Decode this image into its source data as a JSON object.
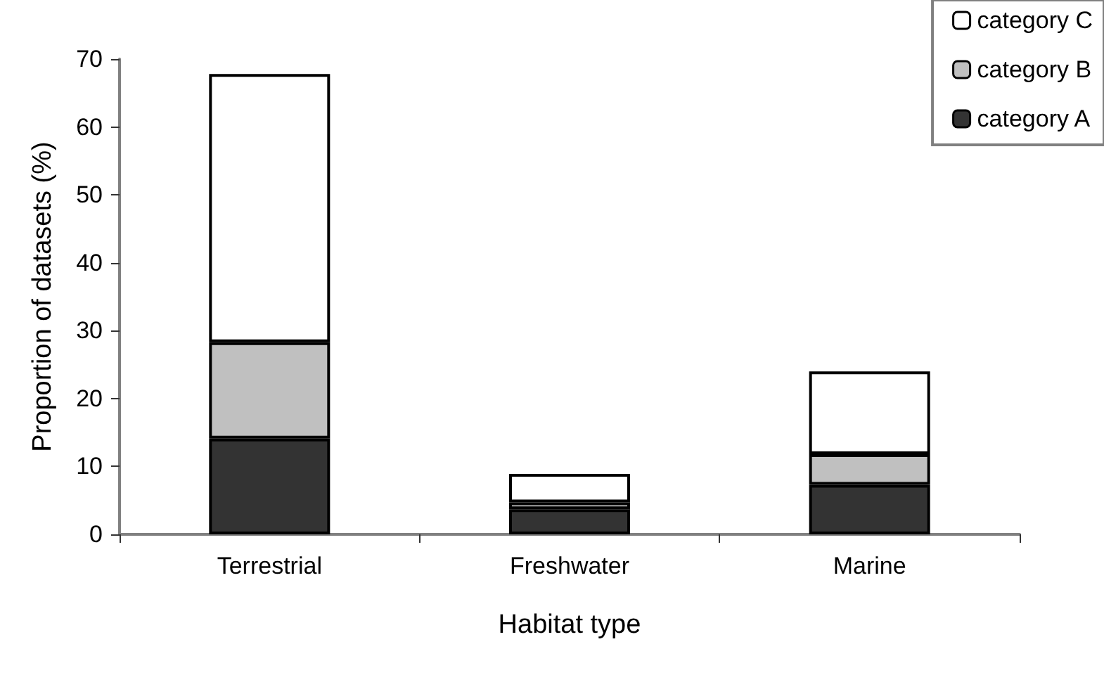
{
  "chart_data": {
    "type": "bar",
    "stacked": true,
    "xlabel": "Habitat type",
    "ylabel": "Proportion of datasets (%)",
    "categories": [
      "Terrestrial",
      "Freshwater",
      "Marine"
    ],
    "series": [
      {
        "name": "category A",
        "color": "#333333",
        "values": [
          14.1,
          3.7,
          7.3
        ]
      },
      {
        "name": "category B",
        "color": "#c0c0c0",
        "values": [
          14.2,
          1.0,
          4.5
        ]
      },
      {
        "name": "category C",
        "color": "#ffffff",
        "values": [
          39.5,
          4.2,
          12.2
        ]
      }
    ],
    "ylim": [
      0,
      70
    ],
    "yticks": [
      0,
      10,
      20,
      30,
      40,
      50,
      60,
      70
    ],
    "grid": false,
    "legend": "top right"
  }
}
